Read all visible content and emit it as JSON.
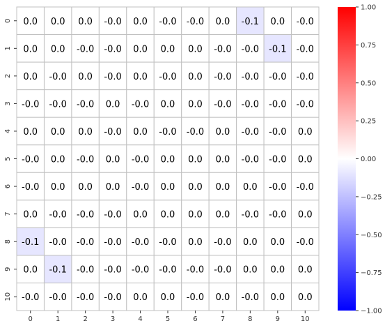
{
  "chart_data": {
    "type": "heatmap",
    "title": "",
    "xlabel": "",
    "ylabel": "",
    "x_categories": [
      "0",
      "1",
      "2",
      "3",
      "4",
      "5",
      "6",
      "7",
      "8",
      "9",
      "10"
    ],
    "y_categories": [
      "0",
      "1",
      "2",
      "3",
      "4",
      "5",
      "6",
      "7",
      "8",
      "9",
      "10"
    ],
    "values": [
      [
        0.0,
        0.0,
        0.0,
        -0.0,
        0.0,
        -0.0,
        -0.0,
        0.0,
        -0.1,
        0.0,
        -0.0
      ],
      [
        0.0,
        0.0,
        -0.0,
        -0.0,
        0.0,
        0.0,
        0.0,
        -0.0,
        -0.0,
        -0.1,
        -0.0
      ],
      [
        0.0,
        -0.0,
        0.0,
        -0.0,
        0.0,
        -0.0,
        0.0,
        -0.0,
        -0.0,
        -0.0,
        -0.0
      ],
      [
        -0.0,
        -0.0,
        -0.0,
        0.0,
        -0.0,
        0.0,
        0.0,
        -0.0,
        -0.0,
        -0.0,
        -0.0
      ],
      [
        0.0,
        0.0,
        0.0,
        -0.0,
        0.0,
        -0.0,
        -0.0,
        0.0,
        -0.0,
        -0.0,
        0.0
      ],
      [
        -0.0,
        0.0,
        -0.0,
        0.0,
        -0.0,
        0.0,
        0.0,
        0.0,
        -0.0,
        -0.0,
        0.0
      ],
      [
        -0.0,
        0.0,
        0.0,
        0.0,
        -0.0,
        0.0,
        0.0,
        0.0,
        0.0,
        -0.0,
        -0.0
      ],
      [
        0.0,
        -0.0,
        -0.0,
        -0.0,
        0.0,
        0.0,
        0.0,
        0.0,
        -0.0,
        -0.0,
        0.0
      ],
      [
        -0.1,
        -0.0,
        -0.0,
        -0.0,
        -0.0,
        -0.0,
        0.0,
        -0.0,
        0.0,
        0.0,
        -0.0
      ],
      [
        0.0,
        -0.1,
        -0.0,
        -0.0,
        -0.0,
        -0.0,
        -0.0,
        -0.0,
        0.0,
        0.0,
        0.0
      ],
      [
        -0.0,
        -0.0,
        -0.0,
        -0.0,
        0.0,
        0.0,
        -0.0,
        0.0,
        -0.0,
        0.0,
        0.0
      ]
    ],
    "labels": [
      [
        "0.0",
        "0.0",
        "0.0",
        "-0.0",
        "0.0",
        "-0.0",
        "-0.0",
        "0.0",
        "-0.1",
        "0.0",
        "-0.0"
      ],
      [
        "0.0",
        "0.0",
        "-0.0",
        "-0.0",
        "0.0",
        "0.0",
        "0.0",
        "-0.0",
        "-0.0",
        "-0.1",
        "-0.0"
      ],
      [
        "0.0",
        "-0.0",
        "0.0",
        "-0.0",
        "0.0",
        "-0.0",
        "0.0",
        "-0.0",
        "-0.0",
        "-0.0",
        "-0.0"
      ],
      [
        "-0.0",
        "-0.0",
        "-0.0",
        "0.0",
        "-0.0",
        "0.0",
        "0.0",
        "-0.0",
        "-0.0",
        "-0.0",
        "-0.0"
      ],
      [
        "0.0",
        "0.0",
        "0.0",
        "-0.0",
        "0.0",
        "-0.0",
        "-0.0",
        "0.0",
        "-0.0",
        "-0.0",
        "0.0"
      ],
      [
        "-0.0",
        "0.0",
        "-0.0",
        "0.0",
        "-0.0",
        "0.0",
        "0.0",
        "0.0",
        "-0.0",
        "-0.0",
        "0.0"
      ],
      [
        "-0.0",
        "0.0",
        "0.0",
        "0.0",
        "-0.0",
        "0.0",
        "0.0",
        "0.0",
        "0.0",
        "-0.0",
        "-0.0"
      ],
      [
        "0.0",
        "-0.0",
        "-0.0",
        "-0.0",
        "0.0",
        "0.0",
        "0.0",
        "0.0",
        "-0.0",
        "-0.0",
        "0.0"
      ],
      [
        "-0.1",
        "-0.0",
        "-0.0",
        "-0.0",
        "-0.0",
        "-0.0",
        "0.0",
        "-0.0",
        "0.0",
        "0.0",
        "-0.0"
      ],
      [
        "0.0",
        "-0.1",
        "-0.0",
        "-0.0",
        "-0.0",
        "-0.0",
        "-0.0",
        "-0.0",
        "0.0",
        "0.0",
        "0.0"
      ],
      [
        "-0.0",
        "-0.0",
        "-0.0",
        "-0.0",
        "0.0",
        "0.0",
        "-0.0",
        "0.0",
        "-0.0",
        "0.0",
        "0.0"
      ]
    ],
    "vmin": -1.0,
    "vmax": 1.0,
    "colormap": "bwr",
    "colors": {
      "low": "#0000ff",
      "mid": "#ffffff",
      "high": "#ff0000",
      "grid": "#c0c0c0"
    },
    "colorbar": {
      "ticks": [
        1.0,
        0.75,
        0.5,
        0.25,
        0.0,
        -0.25,
        -0.5,
        -0.75,
        -1.0
      ],
      "tick_labels": [
        "1.00",
        "0.75",
        "0.50",
        "0.25",
        "0.00",
        "−0.25",
        "−0.50",
        "−0.75",
        "−1.00"
      ]
    },
    "grid": true,
    "legend": "colorbar-right"
  }
}
